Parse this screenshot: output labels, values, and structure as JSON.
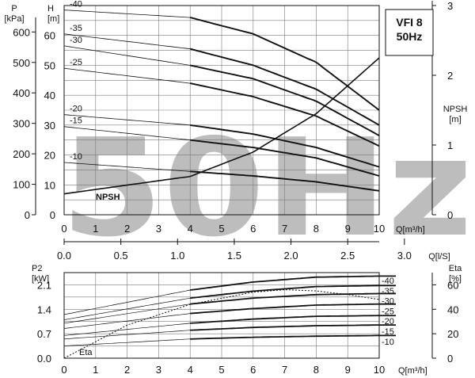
{
  "watermark": "50Hz",
  "chart_data": [
    {
      "name": "head-chart",
      "type": "line",
      "title": "VFI 8\n50Hz",
      "x": {
        "label": "Q[m³/h]",
        "range": [
          0,
          10
        ],
        "ticks": [
          0,
          1,
          2,
          3,
          4,
          5,
          6,
          7,
          8,
          9,
          10
        ]
      },
      "x2": {
        "label": "Q[l/S]",
        "range": [
          0,
          2.78
        ],
        "ticks": [
          "0.0",
          "0.5",
          "1.0",
          "1.5",
          "2.0",
          "2.5",
          "3.0"
        ],
        "tick_values": [
          0,
          0.5,
          1,
          1.5,
          2,
          2.5,
          3
        ]
      },
      "y_left": {
        "label": "H\n[m]",
        "range": [
          0,
          70
        ],
        "ticks": [
          0,
          10,
          20,
          30,
          40,
          50,
          60
        ]
      },
      "y_left2": {
        "label": "P\n[kPa]",
        "ticks": [
          0,
          100,
          200,
          300,
          400,
          500,
          600
        ],
        "tick_values": [
          0,
          100,
          200,
          300,
          400,
          500,
          600
        ]
      },
      "y_right": {
        "label": "NPSH\n[m]",
        "range": [
          0,
          3.0
        ],
        "ticks": [
          0,
          1,
          2,
          3
        ]
      },
      "series": [
        {
          "name": "-40",
          "x": [
            0,
            4,
            6,
            8,
            10
          ],
          "y": [
            68.5,
            66,
            60.5,
            51,
            35
          ]
        },
        {
          "name": "-35",
          "x": [
            0,
            4,
            6,
            8,
            10
          ],
          "y": [
            60.5,
            55.5,
            50,
            42,
            30
          ]
        },
        {
          "name": "-30",
          "x": [
            0,
            4,
            6,
            8,
            10
          ],
          "y": [
            56.5,
            50,
            45.5,
            38,
            26.5
          ]
        },
        {
          "name": "-25",
          "x": [
            0,
            4,
            6,
            8,
            10
          ],
          "y": [
            49,
            44,
            39.5,
            33,
            23
          ]
        },
        {
          "name": "-20",
          "x": [
            0,
            4,
            6,
            8,
            10
          ],
          "y": [
            33.5,
            30,
            27,
            22.5,
            16
          ]
        },
        {
          "name": "-15",
          "x": [
            0,
            4,
            6,
            8,
            10
          ],
          "y": [
            29.5,
            25,
            22.5,
            19,
            13
          ]
        },
        {
          "name": "-10",
          "x": [
            0,
            4,
            6,
            8,
            10
          ],
          "y": [
            17.5,
            14.5,
            13,
            11,
            8
          ]
        },
        {
          "name": "NPSH",
          "axis": "right",
          "x": [
            0,
            4,
            6,
            8,
            10
          ],
          "y": [
            0.3,
            0.55,
            0.9,
            1.45,
            2.25
          ]
        }
      ]
    },
    {
      "name": "power-chart",
      "type": "line",
      "x": {
        "label": "Q[m³/h]",
        "range": [
          0,
          10
        ],
        "ticks": [
          0,
          1,
          2,
          3,
          4,
          5,
          6,
          7,
          8,
          9,
          10
        ]
      },
      "y_left": {
        "label": "P2\n[kW]",
        "range": [
          0,
          2.45
        ],
        "ticks": [
          "0.0",
          "0.7",
          "1.4",
          "2.1"
        ],
        "tick_values": [
          0,
          0.7,
          1.4,
          2.1
        ]
      },
      "y_right": {
        "label": "Eta\n[%]",
        "range": [
          0,
          70
        ],
        "ticks": [
          0,
          20,
          40,
          60
        ]
      },
      "series": [
        {
          "name": "-40",
          "x": [
            0,
            4,
            6,
            8,
            10
          ],
          "y": [
            1.25,
            1.95,
            2.18,
            2.32,
            2.35
          ]
        },
        {
          "name": "-35",
          "x": [
            0,
            4,
            6,
            8,
            10
          ],
          "y": [
            1.1,
            1.72,
            1.92,
            2.05,
            2.08
          ]
        },
        {
          "name": "-30",
          "x": [
            0,
            4,
            6,
            8,
            10
          ],
          "y": [
            1.0,
            1.55,
            1.72,
            1.82,
            1.85
          ]
        },
        {
          "name": "-25",
          "x": [
            0,
            4,
            6,
            8,
            10
          ],
          "y": [
            0.85,
            1.28,
            1.42,
            1.52,
            1.55
          ]
        },
        {
          "name": "-20",
          "x": [
            0,
            4,
            6,
            8,
            10
          ],
          "y": [
            0.65,
            1.0,
            1.12,
            1.2,
            1.22
          ]
        },
        {
          "name": "-15",
          "x": [
            0,
            4,
            6,
            8,
            10
          ],
          "y": [
            0.55,
            0.8,
            0.88,
            0.93,
            0.95
          ]
        },
        {
          "name": "-10",
          "x": [
            0,
            4,
            6,
            8,
            10
          ],
          "y": [
            0.35,
            0.55,
            0.6,
            0.63,
            0.65
          ]
        },
        {
          "name": "Eta",
          "axis": "right",
          "x": [
            0,
            2,
            4,
            6,
            7,
            8,
            9,
            10
          ],
          "y": [
            0,
            27,
            44,
            54,
            56,
            55,
            52,
            48
          ]
        }
      ]
    }
  ]
}
